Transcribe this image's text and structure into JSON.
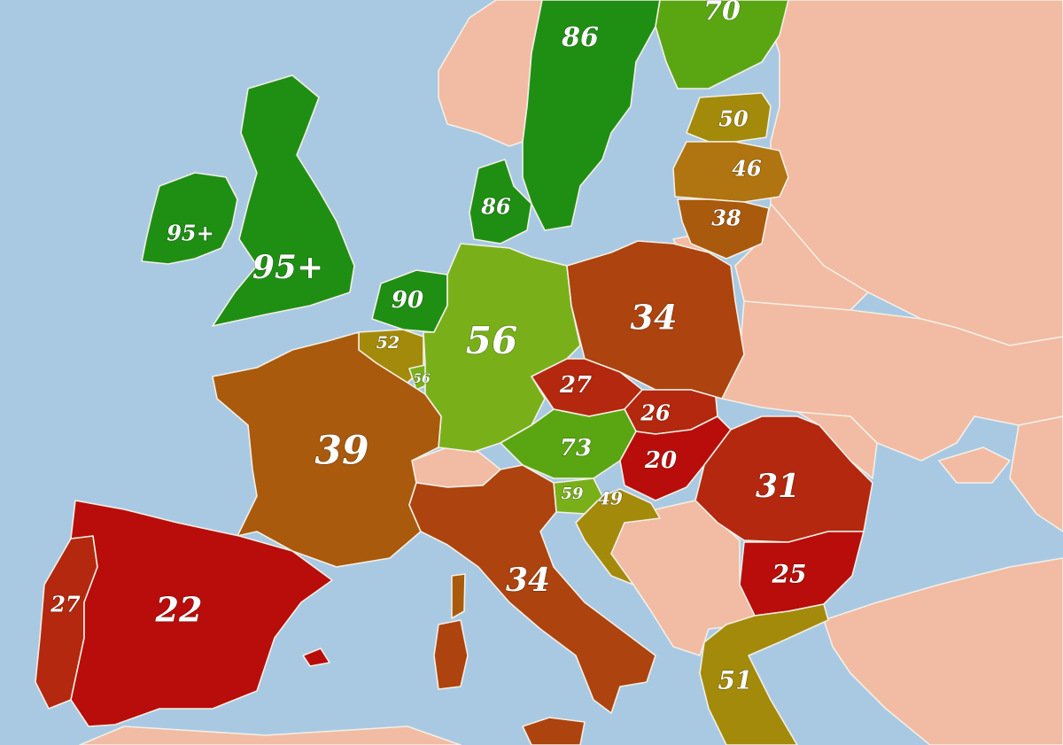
{
  "colors": {
    "sea": "#a9c9e3",
    "no_data": "#f2bba3",
    "dark_green": "#1f8f14",
    "green": "#5aa612",
    "light_green": "#79b01a",
    "olive": "#a38a0a",
    "ochre": "#b07410",
    "brown": "#a95a0c",
    "rust": "#ad430e",
    "red_brown": "#b3280e",
    "red": "#b80d0a"
  },
  "regions": [
    {
      "id": "ireland",
      "label": "95+",
      "value": 95,
      "color_key": "dark_green"
    },
    {
      "id": "uk",
      "label": "95+",
      "value": 95,
      "color_key": "dark_green"
    },
    {
      "id": "sweden",
      "label": "86",
      "value": 86,
      "color_key": "dark_green"
    },
    {
      "id": "finland",
      "label": "70",
      "value": 70,
      "color_key": "green"
    },
    {
      "id": "denmark",
      "label": "86",
      "value": 86,
      "color_key": "dark_green"
    },
    {
      "id": "netherlands",
      "label": "90",
      "value": 90,
      "color_key": "dark_green"
    },
    {
      "id": "belgium",
      "label": "52",
      "value": 52,
      "color_key": "olive"
    },
    {
      "id": "luxembourg",
      "label": "56",
      "value": 56,
      "color_key": "light_green"
    },
    {
      "id": "germany",
      "label": "56",
      "value": 56,
      "color_key": "light_green"
    },
    {
      "id": "estonia",
      "label": "50",
      "value": 50,
      "color_key": "olive"
    },
    {
      "id": "latvia",
      "label": "46",
      "value": 46,
      "color_key": "ochre"
    },
    {
      "id": "lithuania",
      "label": "38",
      "value": 38,
      "color_key": "brown"
    },
    {
      "id": "poland",
      "label": "34",
      "value": 34,
      "color_key": "rust"
    },
    {
      "id": "czechia",
      "label": "27",
      "value": 27,
      "color_key": "red_brown"
    },
    {
      "id": "slovakia",
      "label": "26",
      "value": 26,
      "color_key": "red_brown"
    },
    {
      "id": "austria",
      "label": "73",
      "value": 73,
      "color_key": "green"
    },
    {
      "id": "hungary",
      "label": "20",
      "value": 20,
      "color_key": "red"
    },
    {
      "id": "france",
      "label": "39",
      "value": 39,
      "color_key": "brown"
    },
    {
      "id": "slovenia",
      "label": "59",
      "value": 59,
      "color_key": "light_green"
    },
    {
      "id": "croatia",
      "label": "49",
      "value": 49,
      "color_key": "olive"
    },
    {
      "id": "romania",
      "label": "31",
      "value": 31,
      "color_key": "red_brown"
    },
    {
      "id": "bulgaria",
      "label": "25",
      "value": 25,
      "color_key": "red"
    },
    {
      "id": "italy",
      "label": "34",
      "value": 34,
      "color_key": "rust"
    },
    {
      "id": "portugal",
      "label": "27",
      "value": 27,
      "color_key": "red_brown"
    },
    {
      "id": "spain",
      "label": "22",
      "value": 22,
      "color_key": "red"
    },
    {
      "id": "greece",
      "label": "51",
      "value": 51,
      "color_key": "olive"
    }
  ]
}
